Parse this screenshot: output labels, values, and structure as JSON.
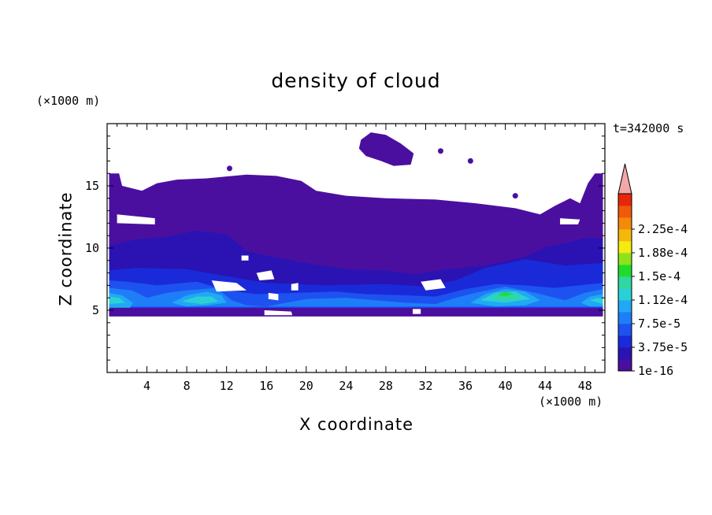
{
  "chart_data": {
    "type": "heatmap",
    "title": "density of cloud",
    "xlabel": "X coordinate",
    "ylabel": "Z coordinate",
    "x_unit": "(×1000 m)",
    "y_unit": "(×1000 m)",
    "time_label": "t=342000 s",
    "xlim": [
      0,
      50
    ],
    "ylim": [
      0,
      20
    ],
    "x_ticks": [
      4,
      8,
      12,
      16,
      20,
      24,
      28,
      32,
      36,
      40,
      44,
      48
    ],
    "y_ticks": [
      5,
      10,
      15
    ],
    "colorbar": {
      "labels": [
        "1e-16",
        "3.75e-5",
        "7.5e-5",
        "1.12e-4",
        "1.5e-4",
        "1.88e-4",
        "2.25e-4"
      ],
      "colors": [
        "#4b0fa0",
        "#2a13b2",
        "#1a2ad8",
        "#1e52f0",
        "#1e7ef7",
        "#22a8f4",
        "#2ad0d6",
        "#2fd8a0",
        "#1fdc2a",
        "#8ee21c",
        "#f2ec10",
        "#f4b80c",
        "#f48a0a",
        "#f05a0a",
        "#e8260c"
      ],
      "over_color": "#f2a8a8"
    },
    "regions": [
      {
        "level": 0,
        "polygon": [
          [
            0.2,
            16
          ],
          [
            1.2,
            16
          ],
          [
            1.5,
            15
          ],
          [
            3.5,
            14.6
          ],
          [
            5,
            15.2
          ],
          [
            7,
            15.5
          ],
          [
            10,
            15.6
          ],
          [
            14,
            15.9
          ],
          [
            17,
            15.8
          ],
          [
            19.5,
            15.4
          ],
          [
            21,
            14.6
          ],
          [
            24,
            14.2
          ],
          [
            28,
            14.0
          ],
          [
            33,
            13.9
          ],
          [
            37,
            13.6
          ],
          [
            41,
            13.2
          ],
          [
            43.5,
            12.7
          ],
          [
            45,
            13.4
          ],
          [
            46.5,
            14.0
          ],
          [
            47.5,
            13.6
          ],
          [
            48.3,
            15.2
          ],
          [
            49,
            16
          ],
          [
            49.8,
            16
          ],
          [
            49.8,
            4.5
          ],
          [
            0.2,
            4.5
          ]
        ]
      },
      {
        "level": 0,
        "polygon": [
          [
            25.5,
            18.7
          ],
          [
            26.5,
            19.3
          ],
          [
            28,
            19.1
          ],
          [
            29.5,
            18.4
          ],
          [
            30.8,
            17.6
          ],
          [
            30.5,
            16.7
          ],
          [
            28.8,
            16.6
          ],
          [
            27.5,
            17.0
          ],
          [
            26,
            17.4
          ],
          [
            25.3,
            18.0
          ]
        ]
      },
      {
        "level": 1,
        "polygon": [
          [
            0.2,
            10.2
          ],
          [
            3,
            10.7
          ],
          [
            6,
            10.9
          ],
          [
            9,
            11.4
          ],
          [
            12,
            11.1
          ],
          [
            14,
            9.8
          ],
          [
            16,
            9.4
          ],
          [
            20,
            8.8
          ],
          [
            24,
            8.3
          ],
          [
            28,
            8.2
          ],
          [
            31,
            7.9
          ],
          [
            34,
            8.3
          ],
          [
            38,
            8.6
          ],
          [
            42,
            9.3
          ],
          [
            44,
            10.1
          ],
          [
            46,
            10.4
          ],
          [
            48,
            10.8
          ],
          [
            49.8,
            10.8
          ],
          [
            49.8,
            5.2
          ],
          [
            0.2,
            5.2
          ]
        ]
      },
      {
        "level": 2,
        "polygon": [
          [
            0.2,
            8.2
          ],
          [
            3,
            8.4
          ],
          [
            8,
            8.3
          ],
          [
            13,
            7.6
          ],
          [
            16,
            7.2
          ],
          [
            22,
            7.0
          ],
          [
            28,
            7.1
          ],
          [
            32,
            6.9
          ],
          [
            35,
            7.4
          ],
          [
            38,
            8.4
          ],
          [
            42,
            9.1
          ],
          [
            46,
            8.6
          ],
          [
            49.8,
            8.8
          ],
          [
            49.8,
            5.2
          ],
          [
            0.2,
            5.2
          ]
        ]
      },
      {
        "level": 3,
        "polygon": [
          [
            0.2,
            7.4
          ],
          [
            2,
            7.3
          ],
          [
            5,
            7.0
          ],
          [
            9,
            7.3
          ],
          [
            12,
            6.6
          ],
          [
            15,
            6.3
          ],
          [
            19,
            6.4
          ],
          [
            23,
            6.5
          ],
          [
            26,
            6.3
          ],
          [
            30,
            6.2
          ],
          [
            33,
            6.1
          ],
          [
            36,
            6.7
          ],
          [
            39,
            7.1
          ],
          [
            42,
            7.0
          ],
          [
            45,
            6.8
          ],
          [
            49.8,
            7.2
          ],
          [
            49.8,
            5.2
          ],
          [
            0.2,
            5.2
          ]
        ]
      },
      {
        "level": 4,
        "polygon": [
          [
            0.2,
            6.8
          ],
          [
            2.5,
            6.6
          ],
          [
            4,
            6.0
          ],
          [
            6,
            6.4
          ],
          [
            8,
            6.6
          ],
          [
            11,
            6.8
          ],
          [
            12.5,
            5.8
          ],
          [
            14,
            5.4
          ],
          [
            16,
            5.3
          ],
          [
            20,
            5.9
          ],
          [
            24,
            6.0
          ],
          [
            27,
            5.8
          ],
          [
            30,
            5.6
          ],
          [
            33,
            5.5
          ],
          [
            35,
            6.0
          ],
          [
            37,
            6.4
          ],
          [
            40,
            6.9
          ],
          [
            43,
            6.4
          ],
          [
            46,
            5.8
          ],
          [
            48,
            6.4
          ],
          [
            49.8,
            6.7
          ],
          [
            49.8,
            5.3
          ],
          [
            0.2,
            5.3
          ]
        ]
      },
      {
        "level": 5,
        "polygon": [
          [
            0.2,
            6.4
          ],
          [
            1.5,
            6.2
          ],
          [
            2.6,
            5.6
          ],
          [
            2.3,
            5.2
          ],
          [
            0.2,
            5.2
          ]
        ]
      },
      {
        "level": 5,
        "polygon": [
          [
            6.5,
            5.6
          ],
          [
            8,
            6.2
          ],
          [
            10,
            6.5
          ],
          [
            11.5,
            6.2
          ],
          [
            12,
            5.6
          ],
          [
            10,
            5.4
          ],
          [
            8,
            5.3
          ]
        ]
      },
      {
        "level": 5,
        "polygon": [
          [
            36.5,
            5.6
          ],
          [
            38,
            6.3
          ],
          [
            40,
            6.7
          ],
          [
            42,
            6.5
          ],
          [
            43.5,
            5.8
          ],
          [
            42,
            5.4
          ],
          [
            39,
            5.3
          ]
        ]
      },
      {
        "level": 5,
        "polygon": [
          [
            47.6,
            5.6
          ],
          [
            48.5,
            6.1
          ],
          [
            49.8,
            6.3
          ],
          [
            49.8,
            5.3
          ],
          [
            48.5,
            5.3
          ]
        ]
      },
      {
        "level": 6,
        "polygon": [
          [
            0.2,
            6.1
          ],
          [
            1.2,
            6.0
          ],
          [
            1.8,
            5.6
          ],
          [
            0.2,
            5.5
          ]
        ]
      },
      {
        "level": 6,
        "polygon": [
          [
            7.5,
            5.7
          ],
          [
            9,
            6.1
          ],
          [
            10.5,
            6.1
          ],
          [
            11.2,
            5.7
          ],
          [
            9.5,
            5.5
          ]
        ]
      },
      {
        "level": 6,
        "polygon": [
          [
            37.5,
            5.8
          ],
          [
            39,
            6.4
          ],
          [
            41,
            6.5
          ],
          [
            42.5,
            5.9
          ],
          [
            40,
            5.6
          ]
        ]
      },
      {
        "level": 6,
        "polygon": [
          [
            48.5,
            5.8
          ],
          [
            49.3,
            6.0
          ],
          [
            49.8,
            5.9
          ],
          [
            49.8,
            5.5
          ]
        ]
      },
      {
        "level": 7,
        "polygon": [
          [
            38.5,
            6.0
          ],
          [
            39.5,
            6.4
          ],
          [
            41,
            6.3
          ],
          [
            41.7,
            5.9
          ],
          [
            40,
            5.8
          ]
        ]
      },
      {
        "level": 8,
        "polygon": [
          [
            39.2,
            6.2
          ],
          [
            40,
            6.45
          ],
          [
            40.8,
            6.3
          ],
          [
            40,
            6.15
          ]
        ]
      }
    ],
    "gaps": [
      [
        [
          1,
          12.7
        ],
        [
          4.8,
          12.4
        ],
        [
          4.8,
          11.9
        ],
        [
          1,
          12.0
        ]
      ],
      [
        [
          10.5,
          7.4
        ],
        [
          13,
          7.2
        ],
        [
          14,
          6.6
        ],
        [
          11,
          6.5
        ]
      ],
      [
        [
          15,
          8.0
        ],
        [
          16.5,
          8.2
        ],
        [
          16.8,
          7.5
        ],
        [
          15.3,
          7.4
        ]
      ],
      [
        [
          13.5,
          9.4
        ],
        [
          14.2,
          9.4
        ],
        [
          14.2,
          9.0
        ],
        [
          13.5,
          9.0
        ]
      ],
      [
        [
          16.2,
          6.4
        ],
        [
          17.2,
          6.3
        ],
        [
          17.2,
          5.8
        ],
        [
          16.2,
          5.9
        ]
      ],
      [
        [
          18.5,
          7.1
        ],
        [
          19.2,
          7.2
        ],
        [
          19.2,
          6.6
        ],
        [
          18.5,
          6.6
        ]
      ],
      [
        [
          15.8,
          5.0
        ],
        [
          18.5,
          4.9
        ],
        [
          18.6,
          4.6
        ],
        [
          15.8,
          4.6
        ]
      ],
      [
        [
          30.7,
          5.1
        ],
        [
          31.5,
          5.1
        ],
        [
          31.5,
          4.7
        ],
        [
          30.7,
          4.7
        ]
      ],
      [
        [
          31.5,
          7.3
        ],
        [
          33.5,
          7.5
        ],
        [
          34,
          6.8
        ],
        [
          32,
          6.6
        ]
      ],
      [
        [
          45.5,
          12.4
        ],
        [
          47.5,
          12.3
        ],
        [
          47.3,
          11.9
        ],
        [
          45.5,
          11.9
        ]
      ]
    ],
    "specks": [
      [
        14.8,
        14.8
      ],
      [
        18,
        12.8
      ],
      [
        20.4,
        12.5
      ],
      [
        33.5,
        17.8
      ],
      [
        36.5,
        17.0
      ],
      [
        41,
        14.2
      ],
      [
        12.3,
        16.4
      ]
    ]
  }
}
